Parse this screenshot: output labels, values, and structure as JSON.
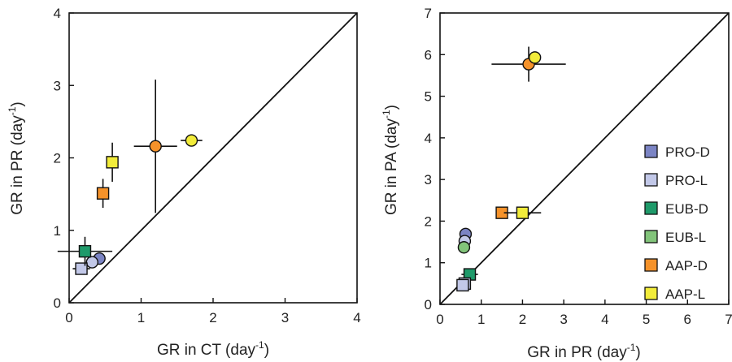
{
  "series_styles": [
    {
      "name": "PRO-D",
      "color": "#7b84c4"
    },
    {
      "name": "PRO-L",
      "color": "#c2c8e8"
    },
    {
      "name": "EUB-D",
      "color": "#1f9a6a"
    },
    {
      "name": "EUB-L",
      "color": "#82c47a"
    },
    {
      "name": "AAP-D",
      "color": "#f5922a"
    },
    {
      "name": "AAP-L",
      "color": "#f2ec3a"
    }
  ],
  "chart_data": [
    {
      "type": "scatter",
      "title": "",
      "xlabel": "GR in CT (day",
      "xlabel_sup": "-1",
      "ylabel": "GR in PR (day",
      "ylabel_sup": "-1",
      "xlim": [
        0,
        4
      ],
      "ylim": [
        0,
        4
      ],
      "xticks": [
        "0",
        "1",
        "2",
        "3",
        "4"
      ],
      "yticks": [
        "0",
        "1",
        "2",
        "3",
        "4"
      ],
      "identity_line": true,
      "grid": false,
      "legend": "none",
      "points": [
        {
          "series": "PRO-D",
          "marker": "circle",
          "x": 0.42,
          "y": 0.61,
          "xerr": 0.0,
          "yerr": 0.0
        },
        {
          "series": "PRO-L",
          "marker": "circle",
          "x": 0.32,
          "y": 0.56,
          "xerr": 0.0,
          "yerr": 0.0
        },
        {
          "series": "PRO-L",
          "marker": "square",
          "x": 0.17,
          "y": 0.47,
          "xerr": 0.12,
          "yerr": 0.0
        },
        {
          "series": "EUB-D",
          "marker": "square",
          "x": 0.22,
          "y": 0.71,
          "xerr": 0.38,
          "yerr": 0.2
        },
        {
          "series": "AAP-D",
          "marker": "square",
          "x": 0.47,
          "y": 1.51,
          "xerr": 0.0,
          "yerr": 0.2
        },
        {
          "series": "AAP-L",
          "marker": "square",
          "x": 0.6,
          "y": 1.94,
          "xerr": 0.0,
          "yerr": 0.27
        },
        {
          "series": "AAP-D",
          "marker": "circle",
          "x": 1.2,
          "y": 2.16,
          "xerr": 0.3,
          "yerr": 0.92
        },
        {
          "series": "AAP-L",
          "marker": "circle",
          "x": 1.7,
          "y": 2.24,
          "xerr": 0.15,
          "yerr": 0.0
        }
      ]
    },
    {
      "type": "scatter",
      "title": "",
      "xlabel": "GR in PR (day",
      "xlabel_sup": "-1",
      "ylabel": "GR in PA (day",
      "ylabel_sup": "-1",
      "xlim": [
        0,
        7
      ],
      "ylim": [
        0,
        7
      ],
      "xticks": [
        "0",
        "1",
        "2",
        "3",
        "4",
        "5",
        "6",
        "7"
      ],
      "yticks": [
        "0",
        "1",
        "2",
        "3",
        "4",
        "5",
        "6",
        "7"
      ],
      "identity_line": true,
      "grid": false,
      "legend": "right",
      "points": [
        {
          "series": "PRO-D",
          "marker": "circle",
          "x": 0.62,
          "y": 1.69,
          "xerr": 0.0,
          "yerr": 0.0
        },
        {
          "series": "PRO-L",
          "marker": "circle",
          "x": 0.6,
          "y": 1.52,
          "xerr": 0.0,
          "yerr": 0.0
        },
        {
          "series": "EUB-L",
          "marker": "circle",
          "x": 0.58,
          "y": 1.37,
          "xerr": 0.0,
          "yerr": 0.0
        },
        {
          "series": "EUB-D",
          "marker": "square",
          "x": 0.72,
          "y": 0.72,
          "xerr": 0.2,
          "yerr": 0.0
        },
        {
          "series": "PRO-L",
          "marker": "square",
          "x": 0.6,
          "y": 0.5,
          "xerr": 0.1,
          "yerr": 0.0
        },
        {
          "series": "PRO-L",
          "marker": "square",
          "x": 0.55,
          "y": 0.46,
          "xerr": 0.0,
          "yerr": 0.0
        },
        {
          "series": "AAP-D",
          "marker": "square",
          "x": 1.5,
          "y": 2.2,
          "xerr": 0.0,
          "yerr": 0.0
        },
        {
          "series": "AAP-L",
          "marker": "square",
          "x": 2.0,
          "y": 2.2,
          "xerr": 0.45,
          "yerr": 0.0
        },
        {
          "series": "AAP-D",
          "marker": "circle",
          "x": 2.15,
          "y": 5.77,
          "xerr": 0.9,
          "yerr": 0.42
        },
        {
          "series": "AAP-L",
          "marker": "circle",
          "x": 2.3,
          "y": 5.93,
          "xerr": 0.0,
          "yerr": 0.0
        }
      ]
    }
  ]
}
